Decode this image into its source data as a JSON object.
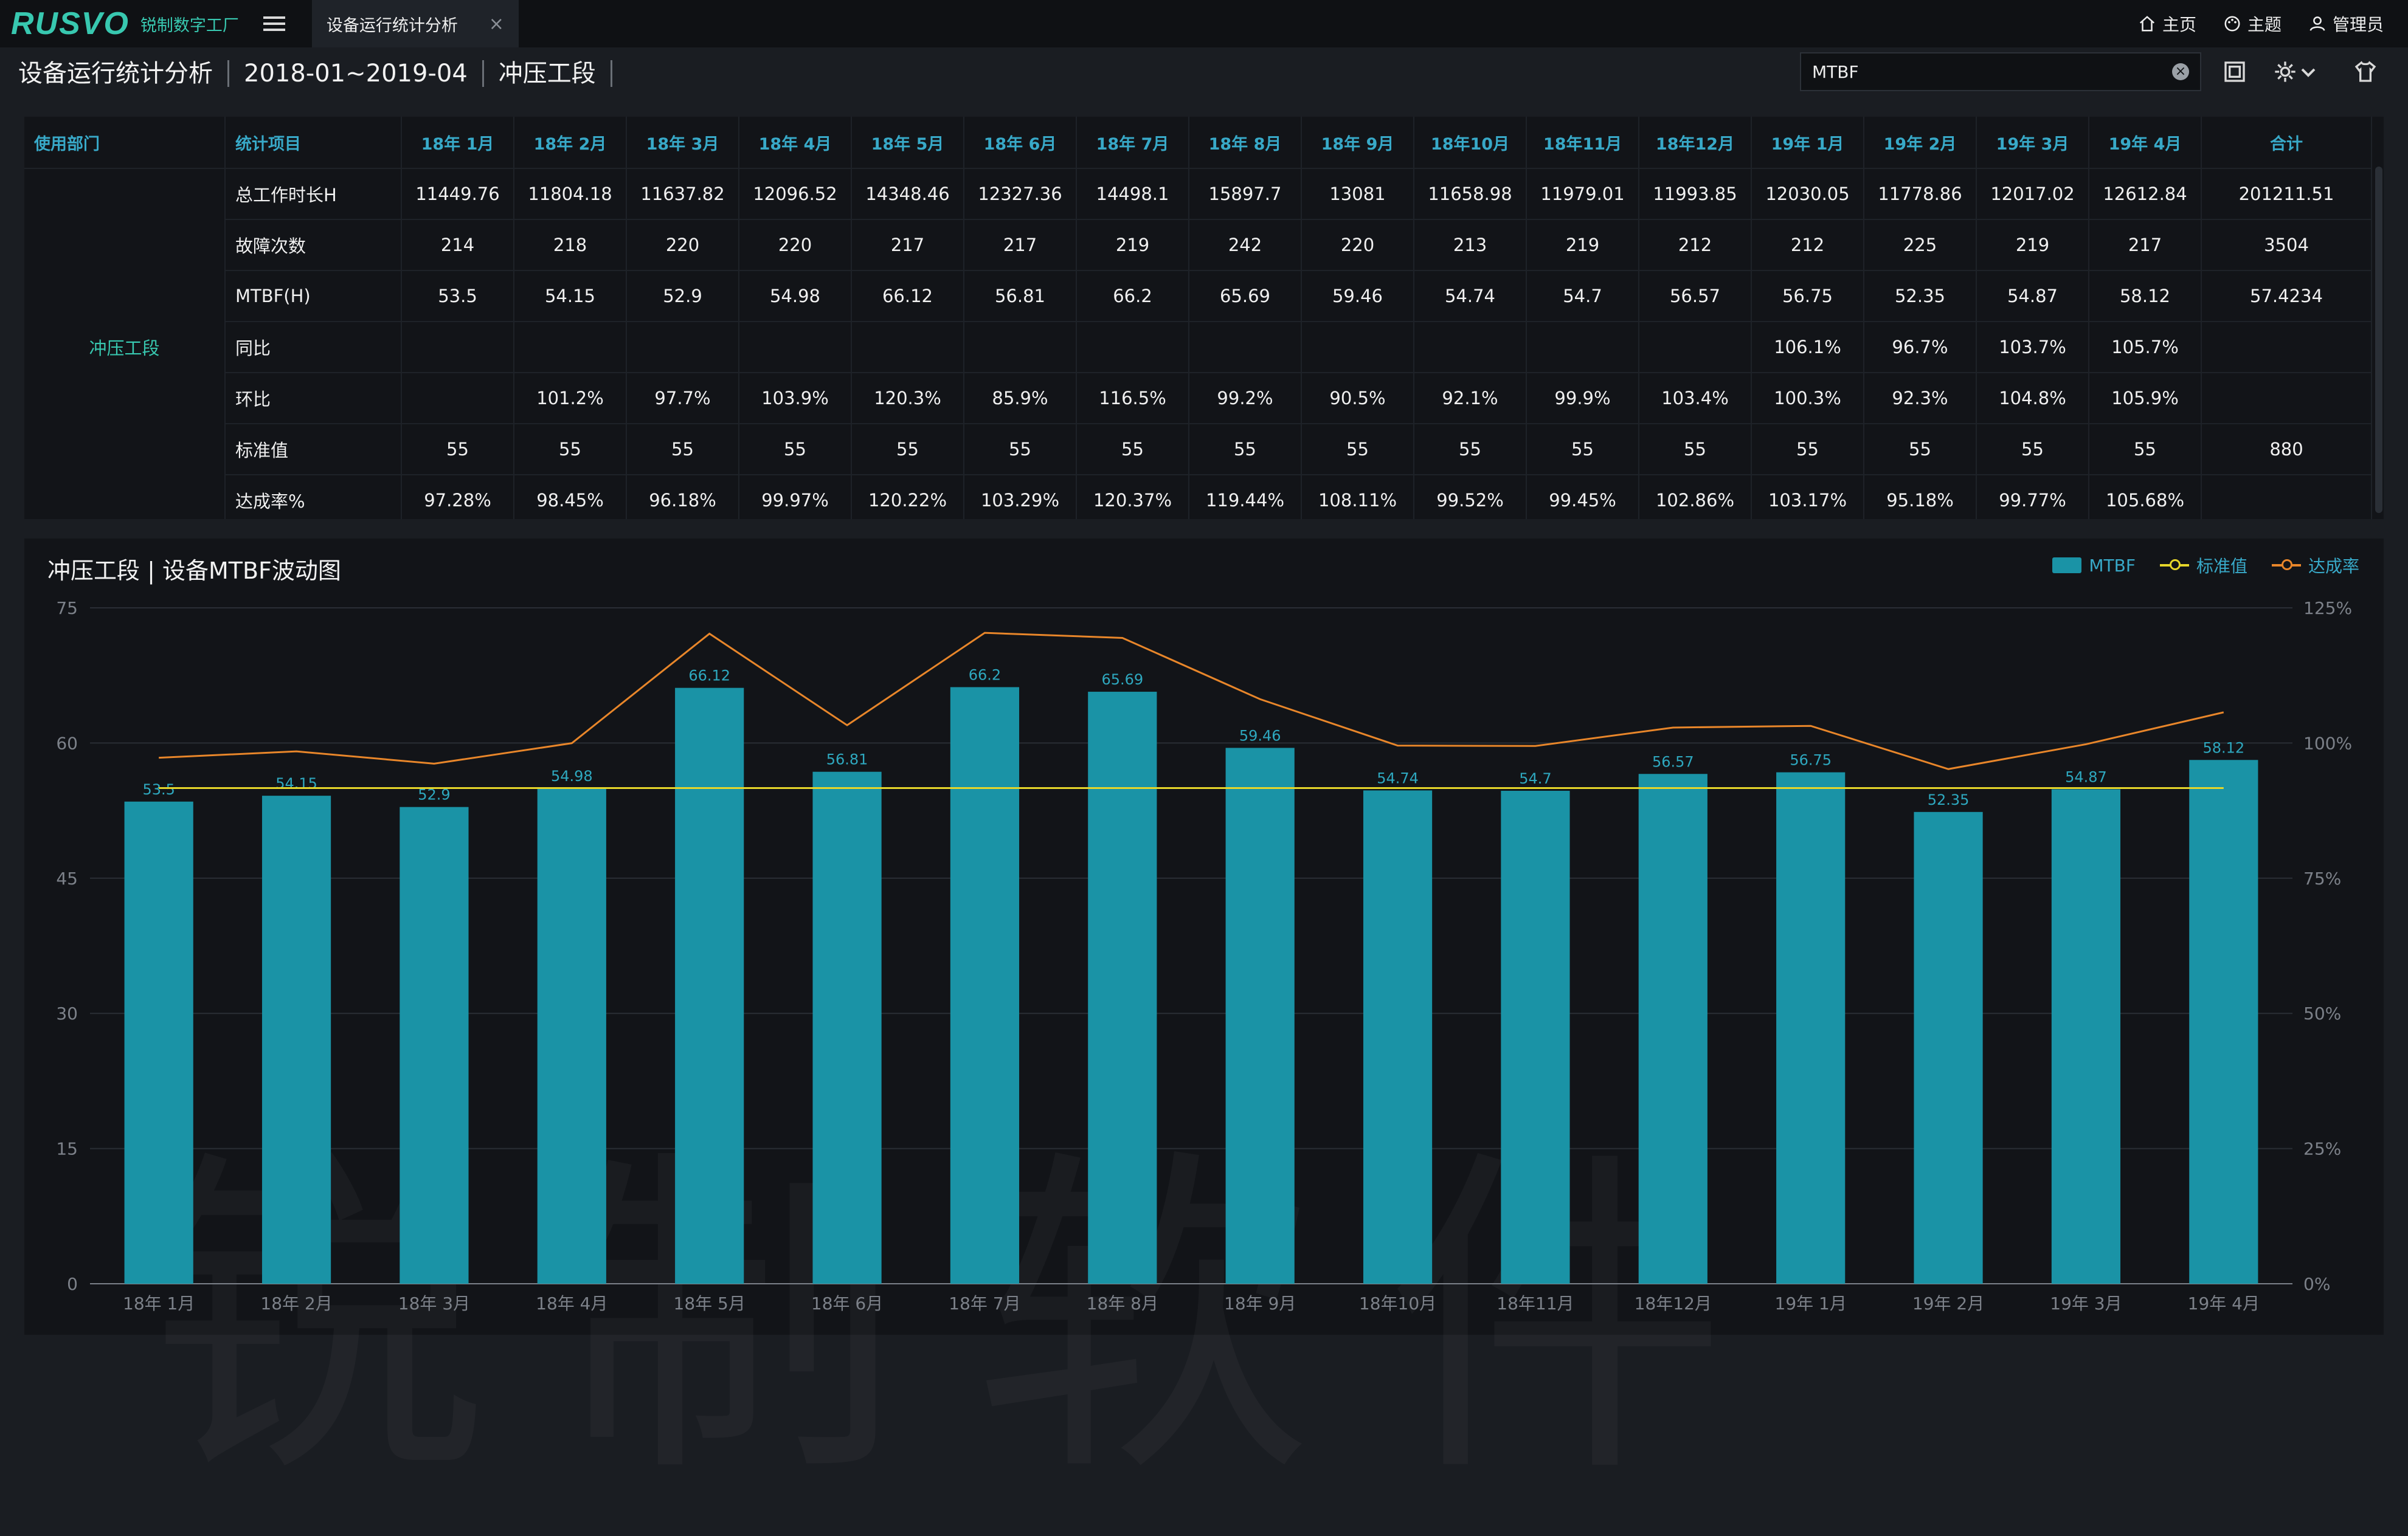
{
  "app": {
    "logo": "RUSVO",
    "logo_subtitle": "锐制数字工厂"
  },
  "tab": {
    "label": "设备运行统计分析",
    "close": "×"
  },
  "top_nav": {
    "home": "主页",
    "theme": "主题",
    "user": "管理员"
  },
  "breadcrumb": [
    "设备运行统计分析",
    "2018-01~2019-04",
    "冲压工段"
  ],
  "search": {
    "value": "MTBF"
  },
  "table": {
    "headers": [
      "使用部门",
      "统计项目",
      "18年 1月",
      "18年 2月",
      "18年 3月",
      "18年 4月",
      "18年 5月",
      "18年 6月",
      "18年 7月",
      "18年 8月",
      "18年 9月",
      "18年10月",
      "18年11月",
      "18年12月",
      "19年 1月",
      "19年 2月",
      "19年 3月",
      "19年 4月",
      "合计"
    ],
    "department": "冲压工段",
    "rows": [
      {
        "item": "总工作时长H",
        "values": [
          "11449.76",
          "11804.18",
          "11637.82",
          "12096.52",
          "14348.46",
          "12327.36",
          "14498.1",
          "15897.7",
          "13081",
          "11658.98",
          "11979.01",
          "11993.85",
          "12030.05",
          "11778.86",
          "12017.02",
          "12612.84",
          "201211.51"
        ]
      },
      {
        "item": "故障次数",
        "values": [
          "214",
          "218",
          "220",
          "220",
          "217",
          "217",
          "219",
          "242",
          "220",
          "213",
          "219",
          "212",
          "212",
          "225",
          "219",
          "217",
          "3504"
        ]
      },
      {
        "item": "MTBF(H)",
        "values": [
          "53.5",
          "54.15",
          "52.9",
          "54.98",
          "66.12",
          "56.81",
          "66.2",
          "65.69",
          "59.46",
          "54.74",
          "54.7",
          "56.57",
          "56.75",
          "52.35",
          "54.87",
          "58.12",
          "57.4234"
        ]
      },
      {
        "item": "同比",
        "values": [
          "",
          "",
          "",
          "",
          "",
          "",
          "",
          "",
          "",
          "",
          "",
          "",
          "106.1%",
          "96.7%",
          "103.7%",
          "105.7%",
          ""
        ]
      },
      {
        "item": "环比",
        "values": [
          "",
          "101.2%",
          "97.7%",
          "103.9%",
          "120.3%",
          "85.9%",
          "116.5%",
          "99.2%",
          "90.5%",
          "92.1%",
          "99.9%",
          "103.4%",
          "100.3%",
          "92.3%",
          "104.8%",
          "105.9%",
          ""
        ]
      },
      {
        "item": "标准值",
        "values": [
          "55",
          "55",
          "55",
          "55",
          "55",
          "55",
          "55",
          "55",
          "55",
          "55",
          "55",
          "55",
          "55",
          "55",
          "55",
          "55",
          "880"
        ]
      },
      {
        "item": "达成率%",
        "values": [
          "97.28%",
          "98.45%",
          "96.18%",
          "99.97%",
          "120.22%",
          "103.29%",
          "120.37%",
          "119.44%",
          "108.11%",
          "99.52%",
          "99.45%",
          "102.86%",
          "103.17%",
          "95.18%",
          "99.77%",
          "105.68%",
          ""
        ]
      }
    ]
  },
  "watermark": "锐制软件",
  "chart_data": {
    "type": "bar",
    "title": "冲压工段 | 设备MTBF波动图",
    "categories": [
      "18年 1月",
      "18年 2月",
      "18年 3月",
      "18年 4月",
      "18年 5月",
      "18年 6月",
      "18年 7月",
      "18年 8月",
      "18年 9月",
      "18年10月",
      "18年11月",
      "18年12月",
      "19年 1月",
      "19年 2月",
      "19年 3月",
      "19年 4月"
    ],
    "series": [
      {
        "name": "MTBF",
        "type": "bar",
        "axis": "left",
        "color": "#1a93a6",
        "values": [
          53.5,
          54.15,
          52.9,
          54.98,
          66.12,
          56.81,
          66.2,
          65.69,
          59.46,
          54.74,
          54.7,
          56.57,
          56.75,
          52.35,
          54.87,
          58.12
        ]
      },
      {
        "name": "标准值",
        "type": "line",
        "axis": "left",
        "color": "#e6d62a",
        "values": [
          55,
          55,
          55,
          55,
          55,
          55,
          55,
          55,
          55,
          55,
          55,
          55,
          55,
          55,
          55,
          55
        ]
      },
      {
        "name": "达成率",
        "type": "line",
        "axis": "right",
        "color": "#e8862a",
        "values": [
          97.28,
          98.45,
          96.18,
          99.97,
          120.22,
          103.29,
          120.37,
          119.44,
          108.11,
          99.52,
          99.45,
          102.86,
          103.17,
          95.18,
          99.77,
          105.68
        ]
      }
    ],
    "ylim_left": [
      0,
      75
    ],
    "yticks_left": [
      "0",
      "15",
      "30",
      "45",
      "60",
      "75"
    ],
    "ylim_right": [
      0,
      125
    ],
    "yticks_right": [
      "0%",
      "25%",
      "50%",
      "75%",
      "100%",
      "125%"
    ],
    "grid": true,
    "legend": "top-right"
  }
}
